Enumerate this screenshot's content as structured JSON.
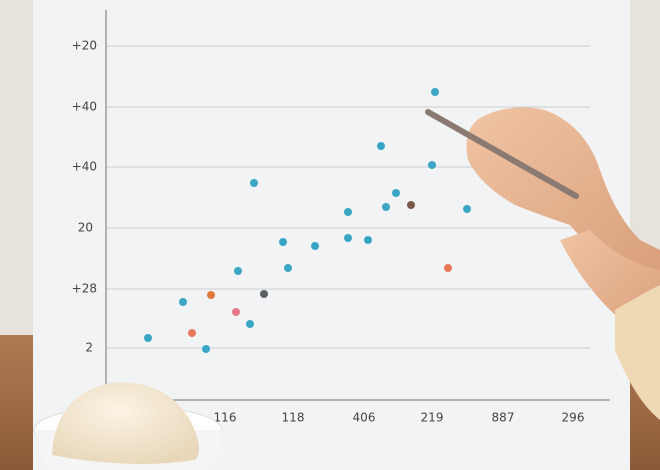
{
  "y_axis_labels": [
    "+20",
    "+40",
    "+40",
    "20",
    "+28",
    "2"
  ],
  "x_axis_labels": [
    "116",
    "118",
    "406",
    "219",
    "887",
    "296"
  ]
}
